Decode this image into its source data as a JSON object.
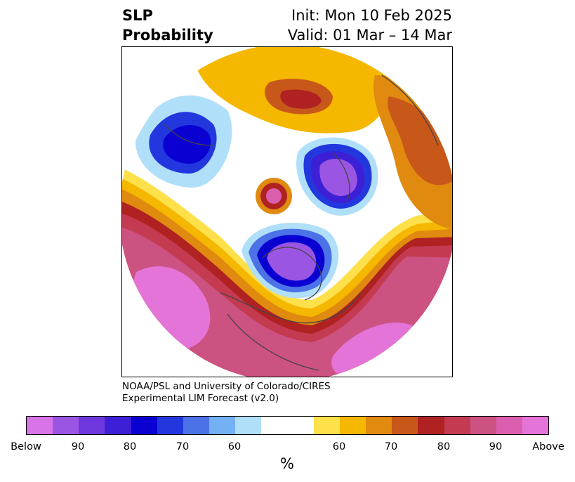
{
  "title": {
    "left_line1": "SLP",
    "left_line2": "Probability",
    "right_line1": "Init: Mon 10 Feb 2025",
    "right_line2": "Valid: 01 Mar – 14 Mar"
  },
  "credit": {
    "line1": "NOAA/PSL and University of Colorado/CIRES",
    "line2": "Experimental LIM Forecast (v2.0)"
  },
  "colorbar": {
    "unit": "%",
    "colors": [
      "#d873e8",
      "#9b55e3",
      "#6e37dd",
      "#3d1fd6",
      "#0a00d2",
      "#2238de",
      "#4c72e8",
      "#74b1f4",
      "#b0dffa",
      "#ffffff",
      "#ffffff",
      "#fde04a",
      "#f5b700",
      "#e08a10",
      "#c8571a",
      "#b02222",
      "#c43a50",
      "#cc5282",
      "#db5fae",
      "#e574d8"
    ],
    "tick_labels": [
      "Below",
      "90",
      "80",
      "70",
      "60",
      "60",
      "70",
      "80",
      "90",
      "Above"
    ]
  },
  "map": {
    "projection": "north-polar-stereographic",
    "features": [
      "positive-anomaly-north-pacific",
      "positive-anomaly-north-america",
      "negative-anomaly-canada",
      "negative-anomaly-arctic",
      "negative-anomaly-siberia",
      "positive-anomaly-russia",
      "positive-anomaly-greenland-small"
    ]
  }
}
